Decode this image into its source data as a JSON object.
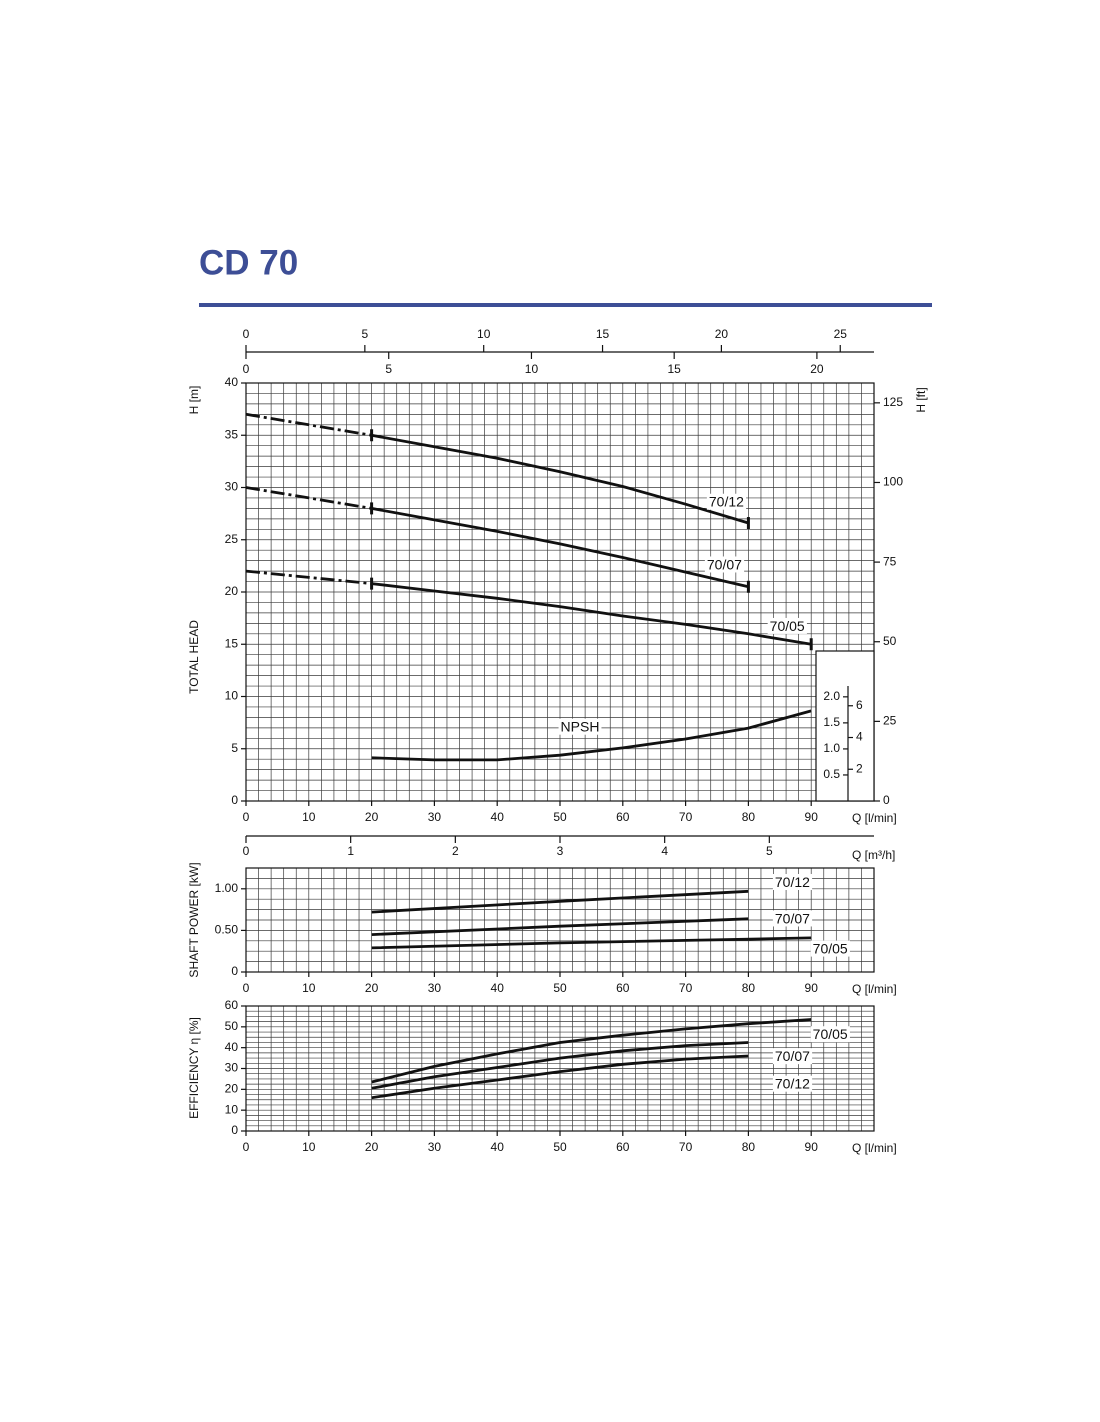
{
  "title": "CD 70",
  "chart_data": [
    {
      "type": "line",
      "y_label": "H [m]",
      "y_title": "TOTAL HEAD",
      "y2_label": "H [ft]",
      "x_label": "Q [l/min]",
      "xlim": [
        0,
        100
      ],
      "xticks": [
        0,
        10,
        20,
        30,
        40,
        50,
        60,
        70,
        80,
        90
      ],
      "ylim": [
        0,
        40
      ],
      "yticks": [
        0,
        5,
        10,
        15,
        20,
        25,
        30,
        35,
        40
      ],
      "y2lim": [
        0,
        131.23
      ],
      "y2ticks": [
        0,
        25,
        50,
        75,
        100,
        125
      ],
      "grid": true,
      "xgrid_step": 2,
      "ygrid_step": 1,
      "dashed_below": 20,
      "color": "#111111",
      "top_axes": [
        {
          "xlim": [
            0,
            26.42
          ],
          "xticks": [
            0,
            5,
            10,
            15,
            20,
            25
          ]
        },
        {
          "xlim": [
            0,
            22
          ],
          "xticks": [
            0,
            5,
            10,
            15,
            20
          ]
        }
      ],
      "bottom_axis": {
        "label": "Q [m³/h]",
        "xlim": [
          0,
          6
        ],
        "xticks": [
          0,
          1,
          2,
          3,
          4,
          5
        ]
      },
      "series": [
        {
          "name": "70/12",
          "x": [
            0,
            10,
            20,
            30,
            40,
            50,
            60,
            70,
            80
          ],
          "values": [
            37,
            36,
            35,
            33.9,
            32.8,
            31.5,
            30.1,
            28.4,
            26.6
          ]
        },
        {
          "name": "70/07",
          "x": [
            0,
            10,
            20,
            30,
            40,
            50,
            60,
            70,
            80
          ],
          "values": [
            30,
            29,
            28,
            26.9,
            25.8,
            24.6,
            23.3,
            21.9,
            20.5
          ]
        },
        {
          "name": "70/05",
          "x": [
            0,
            10,
            20,
            30,
            40,
            50,
            60,
            70,
            80,
            90
          ],
          "values": [
            22,
            21.4,
            20.8,
            20.1,
            19.4,
            18.6,
            17.7,
            16.9,
            16.0,
            15.0
          ]
        }
      ]
    },
    {
      "type": "inset",
      "color": "#111111",
      "ylim": [
        0,
        2.88
      ],
      "yticks": [
        0.5,
        {
          "value": 1,
          "label": "1.0"
        },
        1.5,
        {
          "value": 2,
          "label": "2.0"
        }
      ],
      "y2lim": [
        0,
        9.45
      ],
      "y2ticks": [
        2,
        4,
        6
      ],
      "series": [
        {
          "name": "NPSH",
          "x": [
            20,
            30,
            40,
            50,
            60,
            70,
            80,
            90
          ],
          "values": [
            0.83,
            0.79,
            0.79,
            0.88,
            1.02,
            1.19,
            1.4,
            1.73
          ]
        }
      ]
    },
    {
      "type": "line",
      "y_title": "SHAFT POWER [kW]",
      "x_label": "Q [l/min]",
      "xlim": [
        0,
        100
      ],
      "xticks": [
        0,
        10,
        20,
        30,
        40,
        50,
        60,
        70,
        80,
        90
      ],
      "ylim": [
        0,
        1.25
      ],
      "yticks": [
        0,
        {
          "value": 0.5,
          "label": "0.50"
        },
        {
          "value": 1,
          "label": "1.00"
        }
      ],
      "grid": true,
      "xgrid_step": 2,
      "ygrid_step": 0.125,
      "color": "#111111",
      "series": [
        {
          "name": "70/12",
          "x": [
            20,
            50,
            80
          ],
          "values": [
            0.72,
            0.85,
            0.97
          ]
        },
        {
          "name": "70/07",
          "x": [
            20,
            50,
            80
          ],
          "values": [
            0.45,
            0.55,
            0.64
          ]
        },
        {
          "name": "70/05",
          "x": [
            20,
            50,
            90
          ],
          "values": [
            0.29,
            0.35,
            0.41
          ]
        }
      ]
    },
    {
      "type": "line",
      "y_title": "EFFICIENCY η [%]",
      "x_label": "Q [l/min]",
      "xlim": [
        0,
        100
      ],
      "xticks": [
        0,
        10,
        20,
        30,
        40,
        50,
        60,
        70,
        80,
        90
      ],
      "ylim": [
        0,
        60
      ],
      "yticks": [
        0,
        10,
        20,
        30,
        40,
        50,
        60
      ],
      "grid": true,
      "xgrid_step": 2,
      "ygrid_step": 2.5,
      "color": "#111111",
      "series": [
        {
          "name": "70/05",
          "x": [
            20,
            30,
            40,
            50,
            60,
            70,
            80,
            90
          ],
          "values": [
            23.5,
            31,
            37,
            42.5,
            46,
            49,
            51.5,
            53.5
          ]
        },
        {
          "name": "70/07",
          "x": [
            20,
            30,
            40,
            50,
            60,
            70,
            80
          ],
          "values": [
            20.5,
            26,
            30.5,
            35,
            38.5,
            41,
            42.5
          ]
        },
        {
          "name": "70/12",
          "x": [
            20,
            30,
            40,
            50,
            60,
            70,
            80
          ],
          "values": [
            16,
            20.5,
            24.5,
            28.5,
            32,
            34.5,
            36
          ]
        }
      ]
    }
  ]
}
